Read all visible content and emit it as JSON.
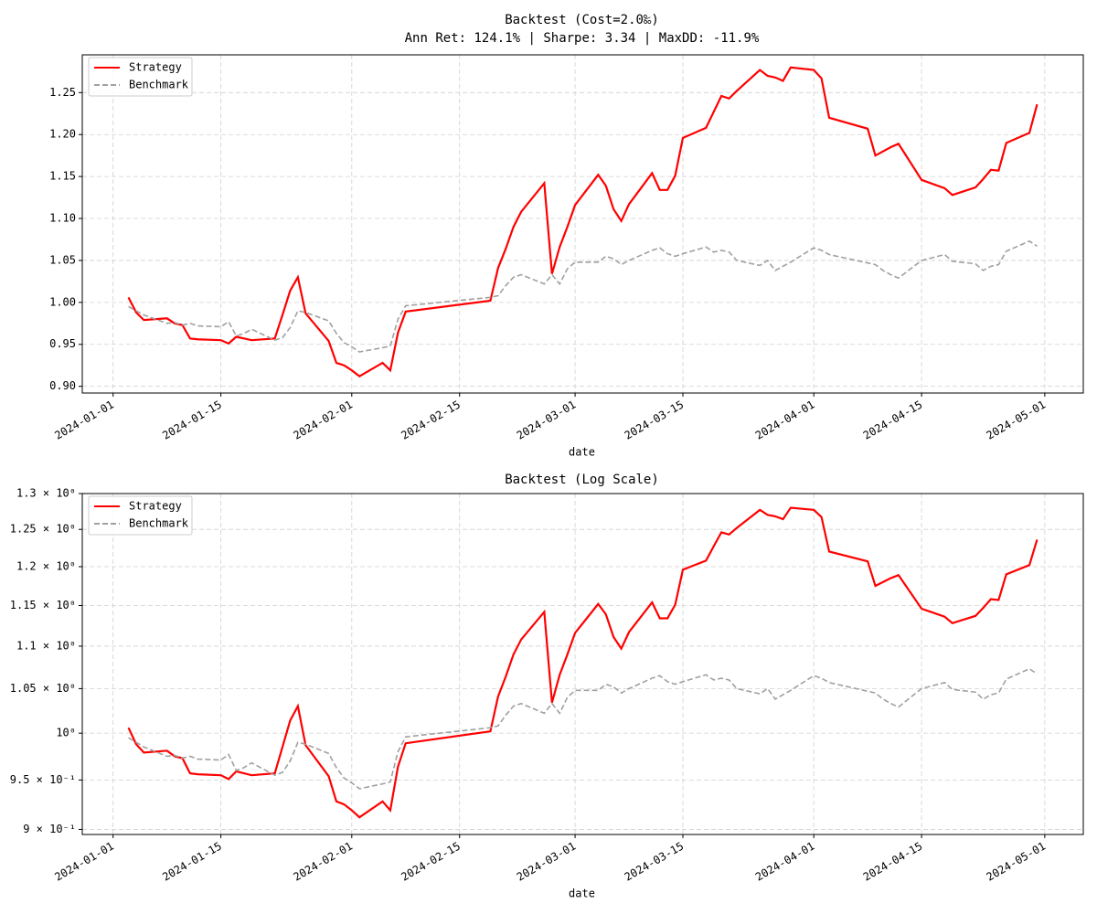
{
  "chart_data": [
    {
      "type": "line",
      "title": "Backtest (Cost=2.0‰)",
      "subtitle": "Ann Ret: 124.1% | Sharpe: 3.34 | MaxDD: -11.9%",
      "x_label": "date",
      "log_scale": false,
      "grid": true,
      "legend": "upper left",
      "x": [
        "2024-01-03",
        "2024-01-04",
        "2024-01-05",
        "2024-01-08",
        "2024-01-09",
        "2024-01-10",
        "2024-01-11",
        "2024-01-12",
        "2024-01-15",
        "2024-01-16",
        "2024-01-17",
        "2024-01-18",
        "2024-01-19",
        "2024-01-22",
        "2024-01-23",
        "2024-01-24",
        "2024-01-25",
        "2024-01-26",
        "2024-01-29",
        "2024-01-30",
        "2024-01-31",
        "2024-02-01",
        "2024-02-02",
        "2024-02-05",
        "2024-02-06",
        "2024-02-07",
        "2024-02-08",
        "2024-02-19",
        "2024-02-20",
        "2024-02-21",
        "2024-02-22",
        "2024-02-23",
        "2024-02-26",
        "2024-02-27",
        "2024-02-28",
        "2024-02-29",
        "2024-03-01",
        "2024-03-04",
        "2024-03-05",
        "2024-03-06",
        "2024-03-07",
        "2024-03-08",
        "2024-03-11",
        "2024-03-12",
        "2024-03-13",
        "2024-03-14",
        "2024-03-15",
        "2024-03-18",
        "2024-03-19",
        "2024-03-20",
        "2024-03-21",
        "2024-03-22",
        "2024-03-25",
        "2024-03-26",
        "2024-03-27",
        "2024-03-28",
        "2024-03-29",
        "2024-04-01",
        "2024-04-02",
        "2024-04-03",
        "2024-04-08",
        "2024-04-09",
        "2024-04-10",
        "2024-04-11",
        "2024-04-12",
        "2024-04-15",
        "2024-04-18",
        "2024-04-19",
        "2024-04-22",
        "2024-04-23",
        "2024-04-24",
        "2024-04-25",
        "2024-04-26",
        "2024-04-29",
        "2024-04-30"
      ],
      "series": [
        {
          "name": "Strategy",
          "color": "#ff0000",
          "linestyle": "solid",
          "values": [
            1.006,
            0.988,
            0.979,
            0.981,
            0.975,
            0.973,
            0.957,
            0.956,
            0.955,
            0.951,
            0.959,
            0.957,
            0.955,
            0.957,
            0.985,
            1.014,
            1.03,
            0.987,
            0.954,
            0.928,
            0.925,
            0.919,
            0.912,
            0.928,
            0.919,
            0.964,
            0.989,
            1.002,
            1.041,
            1.064,
            1.09,
            1.108,
            1.142,
            1.034,
            1.066,
            1.09,
            1.116,
            1.152,
            1.139,
            1.111,
            1.097,
            1.117,
            1.154,
            1.134,
            1.134,
            1.151,
            1.196,
            1.208,
            1.227,
            1.246,
            1.243,
            1.252,
            1.277,
            1.27,
            1.268,
            1.264,
            1.28,
            1.277,
            1.267,
            1.22,
            1.207,
            1.175,
            1.18,
            1.185,
            1.189,
            1.146,
            1.136,
            1.128,
            1.137,
            1.147,
            1.158,
            1.157,
            1.19,
            1.202,
            1.236
          ]
        },
        {
          "name": "Benchmark",
          "color": "#a0a0a0",
          "linestyle": "dashed",
          "values": [
            0.995,
            0.99,
            0.985,
            0.975,
            0.976,
            0.973,
            0.975,
            0.972,
            0.971,
            0.977,
            0.96,
            0.963,
            0.968,
            0.955,
            0.958,
            0.97,
            0.99,
            0.988,
            0.978,
            0.963,
            0.952,
            0.947,
            0.941,
            0.946,
            0.948,
            0.98,
            0.996,
            1.006,
            1.008,
            1.02,
            1.03,
            1.033,
            1.022,
            1.033,
            1.022,
            1.04,
            1.048,
            1.048,
            1.055,
            1.052,
            1.045,
            1.05,
            1.062,
            1.065,
            1.058,
            1.055,
            1.058,
            1.066,
            1.06,
            1.062,
            1.06,
            1.05,
            1.044,
            1.05,
            1.038,
            1.043,
            1.048,
            1.065,
            1.062,
            1.057,
            1.047,
            1.045,
            1.038,
            1.033,
            1.029,
            1.05,
            1.057,
            1.049,
            1.046,
            1.038,
            1.043,
            1.045,
            1.061,
            1.073,
            1.067
          ]
        }
      ],
      "xlim": [
        "2023-12-28",
        "2024-05-06"
      ],
      "xticks": [
        "2024-01-01",
        "2024-01-15",
        "2024-02-01",
        "2024-02-15",
        "2024-03-01",
        "2024-03-15",
        "2024-04-01",
        "2024-04-15",
        "2024-05-01"
      ],
      "ylim": [
        0.892,
        1.295
      ],
      "yticks": [
        {
          "value": 0.9,
          "label": "0.90"
        },
        {
          "value": 0.95,
          "label": "0.95"
        },
        {
          "value": 1.0,
          "label": "1.00"
        },
        {
          "value": 1.05,
          "label": "1.05"
        },
        {
          "value": 1.1,
          "label": "1.10"
        },
        {
          "value": 1.15,
          "label": "1.15"
        },
        {
          "value": 1.2,
          "label": "1.20"
        },
        {
          "value": 1.25,
          "label": "1.25"
        }
      ]
    },
    {
      "type": "line",
      "title": "Backtest (Log Scale)",
      "x_label": "date",
      "log_scale": true,
      "grid": true,
      "legend": "upper left",
      "x": [
        "2024-01-03",
        "2024-01-04",
        "2024-01-05",
        "2024-01-08",
        "2024-01-09",
        "2024-01-10",
        "2024-01-11",
        "2024-01-12",
        "2024-01-15",
        "2024-01-16",
        "2024-01-17",
        "2024-01-18",
        "2024-01-19",
        "2024-01-22",
        "2024-01-23",
        "2024-01-24",
        "2024-01-25",
        "2024-01-26",
        "2024-01-29",
        "2024-01-30",
        "2024-01-31",
        "2024-02-01",
        "2024-02-02",
        "2024-02-05",
        "2024-02-06",
        "2024-02-07",
        "2024-02-08",
        "2024-02-19",
        "2024-02-20",
        "2024-02-21",
        "2024-02-22",
        "2024-02-23",
        "2024-02-26",
        "2024-02-27",
        "2024-02-28",
        "2024-02-29",
        "2024-03-01",
        "2024-03-04",
        "2024-03-05",
        "2024-03-06",
        "2024-03-07",
        "2024-03-08",
        "2024-03-11",
        "2024-03-12",
        "2024-03-13",
        "2024-03-14",
        "2024-03-15",
        "2024-03-18",
        "2024-03-19",
        "2024-03-20",
        "2024-03-21",
        "2024-03-22",
        "2024-03-25",
        "2024-03-26",
        "2024-03-27",
        "2024-03-28",
        "2024-03-29",
        "2024-04-01",
        "2024-04-02",
        "2024-04-03",
        "2024-04-08",
        "2024-04-09",
        "2024-04-10",
        "2024-04-11",
        "2024-04-12",
        "2024-04-15",
        "2024-04-18",
        "2024-04-19",
        "2024-04-22",
        "2024-04-23",
        "2024-04-24",
        "2024-04-25",
        "2024-04-26",
        "2024-04-29",
        "2024-04-30"
      ],
      "series": [
        {
          "name": "Strategy",
          "color": "#ff0000",
          "linestyle": "solid",
          "values": [
            1.006,
            0.988,
            0.979,
            0.981,
            0.975,
            0.973,
            0.957,
            0.956,
            0.955,
            0.951,
            0.959,
            0.957,
            0.955,
            0.957,
            0.985,
            1.014,
            1.03,
            0.987,
            0.954,
            0.928,
            0.925,
            0.919,
            0.912,
            0.928,
            0.919,
            0.964,
            0.989,
            1.002,
            1.041,
            1.064,
            1.09,
            1.108,
            1.142,
            1.034,
            1.066,
            1.09,
            1.116,
            1.152,
            1.139,
            1.111,
            1.097,
            1.117,
            1.154,
            1.134,
            1.134,
            1.151,
            1.196,
            1.208,
            1.227,
            1.246,
            1.243,
            1.252,
            1.277,
            1.27,
            1.268,
            1.264,
            1.28,
            1.277,
            1.267,
            1.22,
            1.207,
            1.175,
            1.18,
            1.185,
            1.189,
            1.146,
            1.136,
            1.128,
            1.137,
            1.147,
            1.158,
            1.157,
            1.19,
            1.202,
            1.236
          ]
        },
        {
          "name": "Benchmark",
          "color": "#a0a0a0",
          "linestyle": "dashed",
          "values": [
            0.995,
            0.99,
            0.985,
            0.975,
            0.976,
            0.973,
            0.975,
            0.972,
            0.971,
            0.977,
            0.96,
            0.963,
            0.968,
            0.955,
            0.958,
            0.97,
            0.99,
            0.988,
            0.978,
            0.963,
            0.952,
            0.947,
            0.941,
            0.946,
            0.948,
            0.98,
            0.996,
            1.006,
            1.008,
            1.02,
            1.03,
            1.033,
            1.022,
            1.033,
            1.022,
            1.04,
            1.048,
            1.048,
            1.055,
            1.052,
            1.045,
            1.05,
            1.062,
            1.065,
            1.058,
            1.055,
            1.058,
            1.066,
            1.06,
            1.062,
            1.06,
            1.05,
            1.044,
            1.05,
            1.038,
            1.043,
            1.048,
            1.065,
            1.062,
            1.057,
            1.047,
            1.045,
            1.038,
            1.033,
            1.029,
            1.05,
            1.057,
            1.049,
            1.046,
            1.038,
            1.043,
            1.045,
            1.061,
            1.073,
            1.067
          ]
        }
      ],
      "xlim": [
        "2023-12-28",
        "2024-05-06"
      ],
      "xticks": [
        "2024-01-01",
        "2024-01-15",
        "2024-02-01",
        "2024-02-15",
        "2024-03-01",
        "2024-03-15",
        "2024-04-01",
        "2024-04-15",
        "2024-05-01"
      ],
      "ylim": [
        0.895,
        1.3
      ],
      "yticks": [
        {
          "value": 0.9,
          "label": "9 × 10⁻¹"
        },
        {
          "value": 0.95,
          "label": "9.5 × 10⁻¹"
        },
        {
          "value": 1,
          "label": "10⁰"
        },
        {
          "value": 1.05,
          "label": "1.05 × 10⁰"
        },
        {
          "value": 1.1,
          "label": "1.1 × 10⁰"
        },
        {
          "value": 1.15,
          "label": "1.15 × 10⁰"
        },
        {
          "value": 1.2,
          "label": "1.2 × 10⁰"
        },
        {
          "value": 1.25,
          "label": "1.25 × 10⁰"
        },
        {
          "value": 1.3,
          "label": "1.3 × 10⁰"
        }
      ]
    }
  ]
}
